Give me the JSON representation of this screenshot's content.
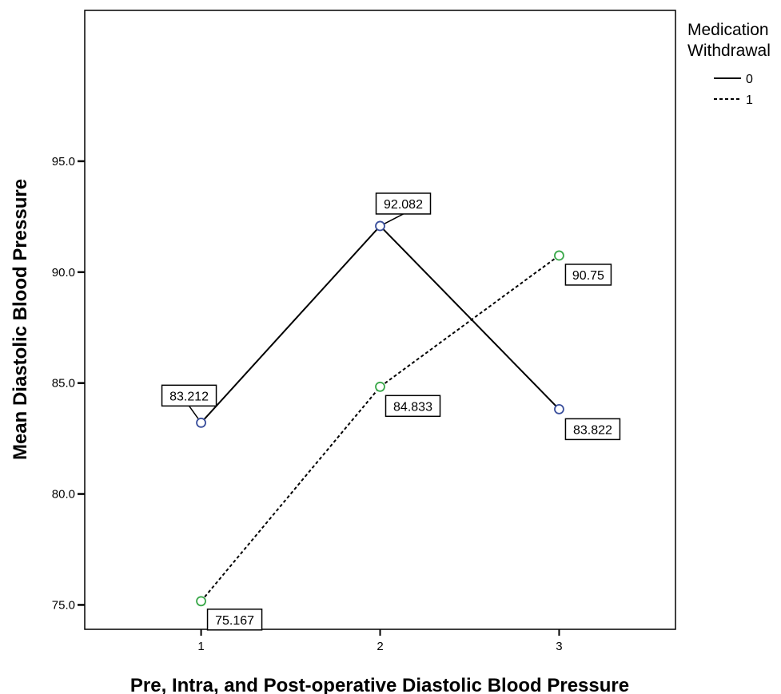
{
  "chart_data": {
    "type": "line",
    "xlabel": "Pre, Intra, and Post-operative Diastolic Blood Pressure",
    "ylabel": "Mean Diastolic Blood Pressure",
    "x": [
      1,
      2,
      3
    ],
    "x_tick_labels": [
      "1",
      "2",
      "3"
    ],
    "xlim": [
      0.35,
      3.65
    ],
    "ylim": [
      73.9,
      101.8
    ],
    "y_ticks": [
      75.0,
      80.0,
      85.0,
      90.0,
      95.0
    ],
    "y_tick_labels": [
      "75.0",
      "80.0",
      "85.0",
      "90.0",
      "95.0"
    ],
    "grid": false,
    "legend": {
      "title_line1": "Medication",
      "title_line2": "Withdrawal",
      "placement": "right"
    },
    "series": [
      {
        "name": "0",
        "values": [
          83.212,
          92.082,
          83.822
        ],
        "labels": [
          "83.212",
          "92.082",
          "83.822"
        ],
        "line_style": "solid",
        "marker_color": "#3a4f9c"
      },
      {
        "name": "1",
        "values": [
          75.167,
          84.833,
          90.75
        ],
        "labels": [
          "75.167",
          "84.833",
          "90.75"
        ],
        "line_style": "dashed",
        "marker_color": "#3aa84a"
      }
    ]
  }
}
